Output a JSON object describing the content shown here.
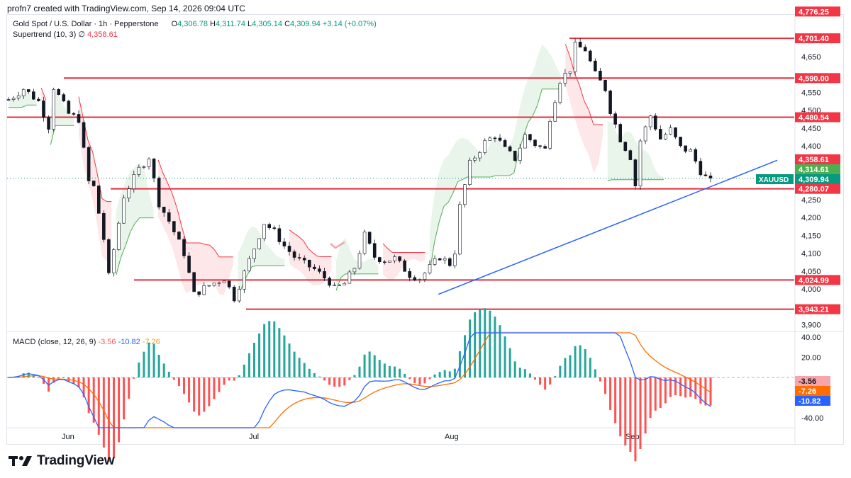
{
  "header": {
    "author_line": "profn7 created with TradingView.com, Sep 14, 2026 09:04 UTC"
  },
  "legend": {
    "instrument": "Gold Spot / U.S. Dollar · 1h · Pepperstone",
    "open_label": "O",
    "open": "4,306.78",
    "high_label": "H",
    "high": "4,311.74",
    "low_label": "L",
    "low": "4,305.14",
    "close_label": "C",
    "close": "4,309.94",
    "change": "+3.14 (+0.07%)",
    "supertrend_label": "Supertrend (10, 3)",
    "supertrend_icon": "∅",
    "supertrend_value": "4,358.61"
  },
  "macd_legend": {
    "label": "MACD (close, 12, 26, 9)",
    "histogram": "-3.56",
    "macd": "-10.82",
    "signal": "-7.26"
  },
  "colors": {
    "up": "#089981",
    "down": "#f23645",
    "level": "#e0303e",
    "trendline": "#2962ff",
    "macd_line": "#2962ff",
    "signal_line": "#ff6d00",
    "st_up": "#4caf50",
    "st_down": "#f23645"
  },
  "logo": {
    "text": "TradingView",
    "icon": "tradingview-logo-icon"
  },
  "chart_data": [
    {
      "type": "candlestick",
      "title": "Gold Spot / U.S. Dollar · 1h · Pepperstone",
      "x_labels": [
        "Jun",
        "Jul",
        "Aug",
        "Sep"
      ],
      "y_ticks": [
        3900,
        4000,
        4050,
        4100,
        4150,
        4200,
        4250,
        4400,
        4450,
        4500,
        4550,
        4650
      ],
      "ylim": [
        3880,
        4790
      ],
      "price_path": [
        [
          0,
          4530
        ],
        [
          3,
          4560
        ],
        [
          6,
          4525
        ],
        [
          8,
          4455
        ],
        [
          9,
          4565
        ],
        [
          12,
          4490
        ],
        [
          14,
          4475
        ],
        [
          16,
          4300
        ],
        [
          17,
          4285
        ],
        [
          19,
          4140
        ],
        [
          20,
          4035
        ],
        [
          23,
          4260
        ],
        [
          26,
          4335
        ],
        [
          28,
          4370
        ],
        [
          30,
          4240
        ],
        [
          32,
          4190
        ],
        [
          35,
          4100
        ],
        [
          37,
          3985
        ],
        [
          40,
          4010
        ],
        [
          43,
          4030
        ],
        [
          45,
          3975
        ],
        [
          46,
          4010
        ],
        [
          48,
          4080
        ],
        [
          51,
          4185
        ],
        [
          53,
          4160
        ],
        [
          55,
          4120
        ],
        [
          57,
          4090
        ],
        [
          59,
          4070
        ],
        [
          61,
          4055
        ],
        [
          64,
          4020
        ],
        [
          65,
          4000
        ],
        [
          67,
          4015
        ],
        [
          69,
          4060
        ],
        [
          71,
          4150
        ],
        [
          73,
          4090
        ],
        [
          75,
          4080
        ],
        [
          77,
          4085
        ],
        [
          80,
          4040
        ],
        [
          82,
          4030
        ],
        [
          84,
          4060
        ],
        [
          86,
          4090
        ],
        [
          88,
          4070
        ],
        [
          89,
          4105
        ],
        [
          90,
          4230
        ],
        [
          92,
          4350
        ],
        [
          95,
          4410
        ],
        [
          97,
          4430
        ],
        [
          99,
          4390
        ],
        [
          101,
          4365
        ],
        [
          103,
          4430
        ],
        [
          105,
          4405
        ],
        [
          107,
          4390
        ],
        [
          108,
          4480
        ],
        [
          110,
          4585
        ],
        [
          112,
          4615
        ],
        [
          113,
          4680
        ],
        [
          115,
          4670
        ],
        [
          117,
          4600
        ],
        [
          119,
          4560
        ],
        [
          120,
          4500
        ],
        [
          122,
          4420
        ],
        [
          124,
          4370
        ],
        [
          125,
          4290
        ],
        [
          126,
          4415
        ],
        [
          128,
          4485
        ],
        [
          130,
          4420
        ],
        [
          132,
          4445
        ],
        [
          134,
          4395
        ],
        [
          136,
          4385
        ],
        [
          138,
          4330
        ],
        [
          139,
          4312
        ]
      ],
      "supertrend": {
        "period": 10,
        "multiplier": 3,
        "last": 4358.61
      },
      "horizontal_levels": [
        {
          "value": 4776.25,
          "label": "4,776.25",
          "color": "#f23645"
        },
        {
          "value": 4701.4,
          "label": "4,701.40",
          "color": "#f23645"
        },
        {
          "value": 4590.0,
          "label": "4,590.00",
          "color": "#f23645"
        },
        {
          "value": 4480.54,
          "label": "4,480.54",
          "color": "#f23645"
        },
        {
          "value": 4280.07,
          "label": "4,280.07",
          "color": "#f23645"
        },
        {
          "value": 4024.99,
          "label": "4,024.99",
          "color": "#f23645"
        },
        {
          "value": 3943.21,
          "label": "3,943.21",
          "color": "#f23645"
        }
      ],
      "price_tags": [
        {
          "value": 4358.61,
          "label": "4,358.61",
          "color": "#f23645"
        },
        {
          "value": 4314.61,
          "label": "4,314.61",
          "color": "#4caf50"
        },
        {
          "value": 4309.94,
          "label": "4,309.94",
          "color": "#089981"
        }
      ],
      "symbol_tag": "XAUUSD",
      "trendline": {
        "from": [
          82,
          3985
        ],
        "to": [
          140,
          4360
        ]
      }
    },
    {
      "type": "line",
      "title": "MACD (close, 12, 26, 9)",
      "y_ticks": [
        40,
        20,
        -40
      ],
      "ylim": [
        -50,
        48
      ],
      "series": [
        {
          "name": "MACD",
          "last": -10.82
        },
        {
          "name": "Signal",
          "last": -7.26
        },
        {
          "name": "Histogram",
          "last": -3.56
        }
      ],
      "value_tags": [
        {
          "value": -3.56,
          "label": "-3.56",
          "color": "#f7a5ab",
          "text_color": "#131722"
        },
        {
          "value": -7.26,
          "label": "-7.26",
          "color": "#ff6d00",
          "text_color": "#ffffff"
        },
        {
          "value": -10.82,
          "label": "-10.82",
          "color": "#2962ff",
          "text_color": "#ffffff"
        }
      ]
    }
  ]
}
